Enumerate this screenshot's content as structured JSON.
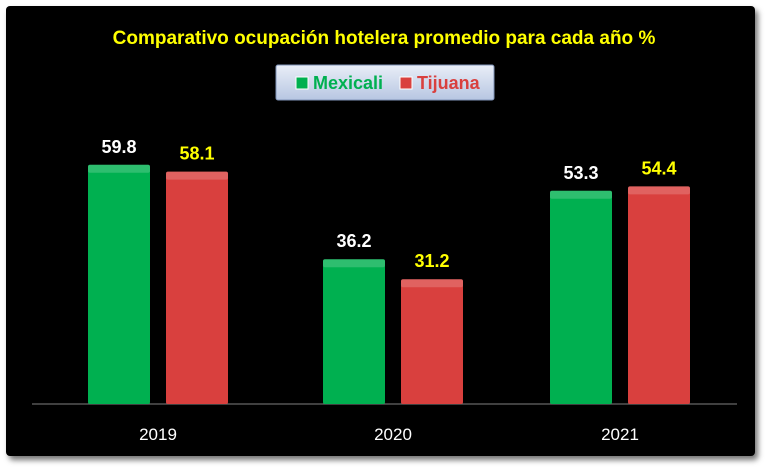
{
  "chart_data": {
    "type": "bar",
    "title": "Comparativo ocupación hotelera  promedio para cada año %",
    "categories": [
      "2019",
      "2020",
      "2021"
    ],
    "series": [
      {
        "name": "Mexicali",
        "values": [
          59.8,
          36.2,
          53.3
        ],
        "color": "#00b050",
        "label_color": "#ffffff"
      },
      {
        "name": "Tijuana",
        "values": [
          58.1,
          31.2,
          54.4
        ],
        "color": "#d9403e",
        "label_color": "#ffff00"
      }
    ],
    "ylim": [
      0,
      66
    ],
    "grid": false,
    "legend": "top-center",
    "title_color": "#ffff00",
    "tick_color": "#ffffff",
    "background": "#000000"
  }
}
